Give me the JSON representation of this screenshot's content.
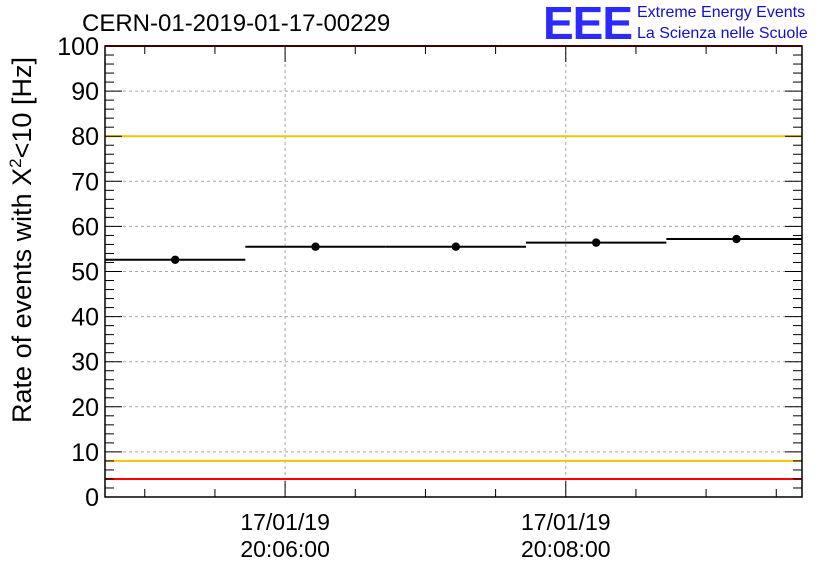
{
  "title": "CERN-01-2019-01-17-00229",
  "logo": {
    "mark": "EEE",
    "line1": "Extreme Energy Events",
    "line2": "La Scienza nelle Scuole"
  },
  "colors": {
    "red_threshold": "#ff0000",
    "yellow_threshold": "#f2c600",
    "logo_blue": "#2b2bff",
    "data": "#000000"
  },
  "chart_data": {
    "type": "scatter",
    "title": "CERN-01-2019-01-17-00229",
    "ylabel_prefix": "Rate of events with X",
    "ylabel_sup": "2",
    "ylabel_suffix": "<10 [Hz]",
    "xlabel": "",
    "ylim": [
      0,
      100
    ],
    "yticks": [
      0,
      10,
      20,
      30,
      40,
      50,
      60,
      70,
      80,
      90,
      100
    ],
    "x_unit": "seconds since 17/01/19 20:06:00",
    "xlim": [
      -77,
      221
    ],
    "xticks": [
      {
        "x": 0,
        "date": "17/01/19",
        "time": "20:06:00"
      },
      {
        "x": 120,
        "date": "17/01/19",
        "time": "20:08:00"
      }
    ],
    "xticks_minor": [
      -60,
      -30,
      30,
      60,
      90,
      150,
      180,
      210
    ],
    "points": [
      {
        "x": -47,
        "xmin": -77,
        "xmax": -17,
        "y": 52.6
      },
      {
        "x": 13,
        "xmin": -17,
        "xmax": 43,
        "y": 55.5
      },
      {
        "x": 73,
        "xmin": 43,
        "xmax": 103,
        "y": 55.5
      },
      {
        "x": 133,
        "xmin": 103,
        "xmax": 163,
        "y": 56.4
      },
      {
        "x": 193,
        "xmin": 163,
        "xmax": 221,
        "y": 57.2
      }
    ],
    "reference_lines": [
      {
        "y": 100,
        "color": "red"
      },
      {
        "y": 80,
        "color": "yellow"
      },
      {
        "y": 8,
        "color": "yellow"
      },
      {
        "y": 4,
        "color": "red"
      }
    ],
    "grid": true,
    "legend": "none"
  }
}
